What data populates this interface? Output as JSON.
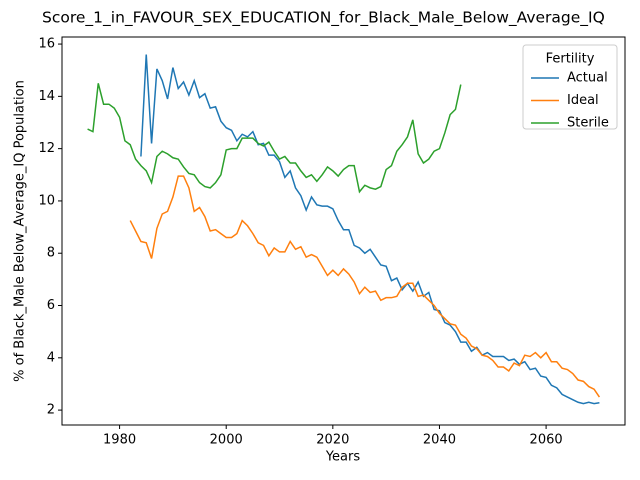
{
  "chart_data": {
    "type": "line",
    "title": "Score_1_in_FAVOUR_SEX_EDUCATION_for_Black_Male_Below_Average_IQ",
    "x_label": "Years",
    "y_label": "% of Black_Male Below_Average_IQ Population",
    "legend_title": "Fertility",
    "legend": "upper right",
    "grid": false,
    "x": [
      1974,
      1975,
      1976,
      1977,
      1978,
      1979,
      1980,
      1981,
      1982,
      1983,
      1984,
      1985,
      1986,
      1987,
      1988,
      1989,
      1990,
      1991,
      1992,
      1993,
      1994,
      1995,
      1996,
      1997,
      1998,
      1999,
      2000,
      2001,
      2002,
      2003,
      2004,
      2005,
      2006,
      2007,
      2008,
      2009,
      2010,
      2011,
      2012,
      2013,
      2014,
      2015,
      2016,
      2017,
      2018,
      2019,
      2020,
      2021,
      2022,
      2023,
      2024,
      2025,
      2026,
      2027,
      2028,
      2029,
      2030,
      2031,
      2032,
      2033,
      2034,
      2035,
      2036,
      2037,
      2038,
      2039,
      2040,
      2041,
      2042,
      2043,
      2044,
      2045,
      2046,
      2047,
      2048,
      2049,
      2050,
      2051,
      2052,
      2053,
      2054,
      2055,
      2056,
      2057,
      2058,
      2059,
      2060,
      2061,
      2062,
      2063,
      2064,
      2065,
      2066,
      2067,
      2068,
      2069,
      2070
    ],
    "series": [
      {
        "name": "Actual",
        "color": "#1f77b4",
        "values": [
          null,
          null,
          null,
          null,
          null,
          null,
          null,
          null,
          null,
          null,
          11.7,
          15.6,
          12.2,
          15.05,
          14.6,
          13.9,
          15.1,
          14.3,
          14.55,
          14.05,
          14.6,
          13.95,
          14.1,
          13.55,
          13.6,
          13.05,
          12.8,
          12.7,
          12.3,
          12.55,
          12.45,
          12.65,
          12.15,
          12.2,
          11.75,
          11.75,
          11.5,
          10.9,
          11.15,
          10.5,
          10.2,
          9.65,
          10.15,
          9.85,
          9.8,
          9.8,
          9.7,
          9.25,
          8.9,
          8.9,
          8.3,
          8.2,
          8.0,
          8.15,
          7.85,
          7.55,
          7.5,
          6.95,
          7.05,
          6.6,
          6.85,
          6.55,
          6.9,
          6.35,
          6.5,
          5.85,
          5.8,
          5.35,
          5.25,
          5.0,
          4.6,
          4.6,
          4.25,
          4.4,
          4.1,
          4.2,
          4.05,
          4.05,
          4.05,
          3.9,
          3.95,
          3.75,
          3.85,
          3.55,
          3.6,
          3.3,
          3.25,
          2.95,
          2.85,
          2.6,
          2.5,
          2.4,
          2.3,
          2.25,
          2.3,
          2.25,
          2.28
        ]
      },
      {
        "name": "Ideal",
        "color": "#ff7f0e",
        "values": [
          null,
          null,
          null,
          null,
          null,
          null,
          null,
          null,
          9.25,
          8.85,
          8.45,
          8.4,
          7.8,
          8.95,
          9.5,
          9.6,
          10.15,
          10.95,
          10.95,
          10.5,
          9.6,
          9.75,
          9.4,
          8.85,
          8.9,
          8.75,
          8.6,
          8.6,
          8.75,
          9.25,
          9.05,
          8.75,
          8.4,
          8.3,
          7.9,
          8.2,
          8.05,
          8.05,
          8.45,
          8.15,
          8.25,
          7.85,
          7.95,
          7.85,
          7.5,
          7.15,
          7.35,
          7.15,
          7.4,
          7.2,
          6.9,
          6.45,
          6.7,
          6.5,
          6.55,
          6.2,
          6.3,
          6.3,
          6.35,
          6.7,
          6.85,
          6.85,
          6.35,
          6.4,
          6.2,
          6.0,
          5.7,
          5.5,
          5.3,
          5.25,
          4.9,
          4.75,
          4.45,
          4.35,
          4.1,
          4.05,
          3.9,
          3.65,
          3.65,
          3.5,
          3.8,
          3.7,
          4.1,
          4.05,
          4.2,
          4.0,
          4.2,
          3.85,
          3.85,
          3.6,
          3.55,
          3.4,
          3.15,
          3.1,
          2.9,
          2.8,
          2.5
        ]
      },
      {
        "name": "Sterile",
        "color": "#2ca02c",
        "values": [
          12.75,
          12.65,
          14.5,
          13.7,
          13.7,
          13.55,
          13.2,
          12.3,
          12.15,
          11.6,
          11.35,
          11.15,
          10.7,
          11.7,
          11.9,
          11.8,
          11.65,
          11.6,
          11.3,
          11.05,
          11.0,
          10.7,
          10.55,
          10.5,
          10.7,
          11.0,
          11.95,
          12.0,
          12.0,
          12.4,
          12.4,
          12.4,
          12.2,
          12.1,
          12.25,
          11.9,
          11.6,
          11.7,
          11.45,
          11.45,
          11.15,
          10.9,
          11.0,
          10.75,
          11.0,
          11.3,
          11.15,
          10.95,
          11.2,
          11.35,
          11.35,
          10.35,
          10.6,
          10.5,
          10.45,
          10.55,
          11.2,
          11.35,
          11.9,
          12.15,
          12.45,
          13.1,
          11.8,
          11.45,
          11.6,
          11.9,
          12.0,
          12.6,
          13.3,
          13.5,
          14.45,
          null,
          null,
          null,
          null,
          null,
          null,
          null,
          null,
          null,
          null,
          null,
          null,
          null,
          null,
          null,
          null,
          null,
          null,
          null,
          null,
          null,
          null,
          null,
          null,
          null,
          null
        ]
      }
    ],
    "xlim": [
      1969.2,
      2074.8
    ],
    "xticks": [
      1980,
      2000,
      2020,
      2040,
      2060
    ],
    "ylim": [
      1.43,
      16.27
    ],
    "yticks": [
      2,
      4,
      6,
      8,
      10,
      12,
      14,
      16
    ]
  }
}
